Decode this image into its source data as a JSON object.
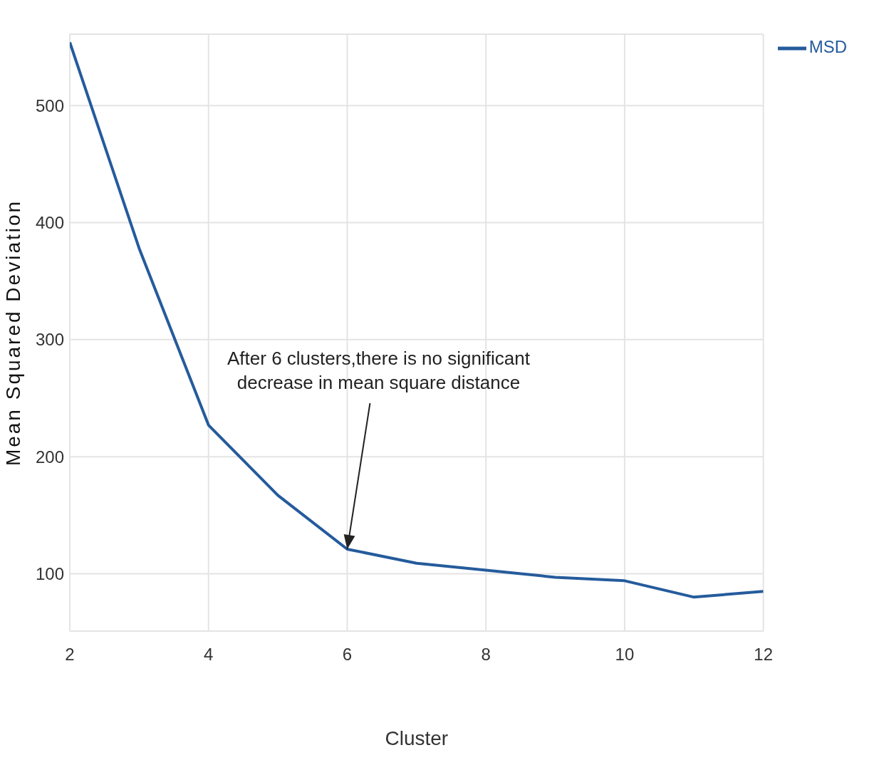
{
  "chart_data": {
    "type": "line",
    "xlabel": "Cluster",
    "ylabel": "Mean Squared Deviation",
    "x": [
      2,
      3,
      4,
      5,
      6,
      7,
      8,
      9,
      10,
      11,
      12
    ],
    "series": [
      {
        "name": "MSD",
        "color": "#255b9c",
        "values": [
          554,
          378,
          227,
          167,
          121,
          109,
          103,
          97,
          94,
          80,
          85
        ]
      }
    ],
    "xlim": [
      2,
      12
    ],
    "ylim": [
      51,
      561
    ],
    "xticks": [
      2,
      4,
      6,
      8,
      10,
      12
    ],
    "yticks": [
      100,
      200,
      300,
      400,
      500
    ],
    "grid": true,
    "legend": "top right",
    "marker": "none",
    "line_style": "solid",
    "annotations": [
      {
        "text": "After 6 clusters,there is no significant decrease in mean square distance",
        "x": 6,
        "y": 121
      }
    ]
  }
}
